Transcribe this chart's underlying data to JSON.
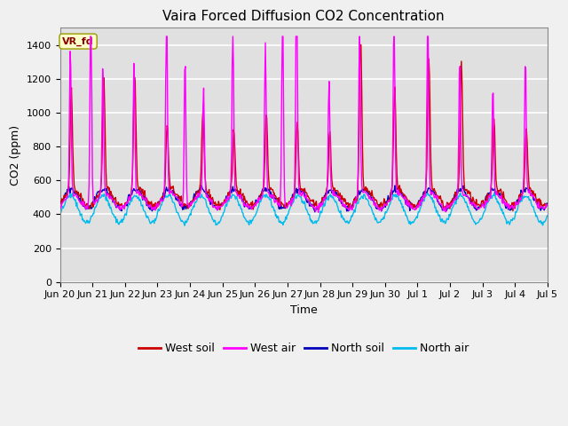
{
  "title": "Vaira Forced Diffusion CO2 Concentration",
  "xlabel": "Time",
  "ylabel": "CO2 (ppm)",
  "ylim": [
    0,
    1500
  ],
  "yticks": [
    0,
    200,
    400,
    600,
    800,
    1000,
    1200,
    1400
  ],
  "x_tick_labels": [
    "Jun 20",
    "Jun 21",
    "Jun 22",
    "Jun 23",
    "Jun 24",
    "Jun 25",
    "Jun 26",
    "Jun 27",
    "Jun 28",
    "Jun 29",
    "Jun 30",
    "Jul 1",
    "Jul 2",
    "Jul 3",
    "Jul 4",
    "Jul 5"
  ],
  "legend_labels": [
    "West soil",
    "West air",
    "North soil",
    "North air"
  ],
  "legend_colors": [
    "#cc0000",
    "#ff00ff",
    "#0000bb",
    "#00bbee"
  ],
  "annotation_text": "VR_fd",
  "annotation_bg": "#ffffcc",
  "annotation_border": "#999900",
  "fig_bg": "#f0f0f0",
  "plot_bg": "#e0e0e0",
  "grid_color": "#ffffff",
  "title_fontsize": 11,
  "axis_fontsize": 9,
  "tick_fontsize": 8,
  "line_width": 1.0
}
